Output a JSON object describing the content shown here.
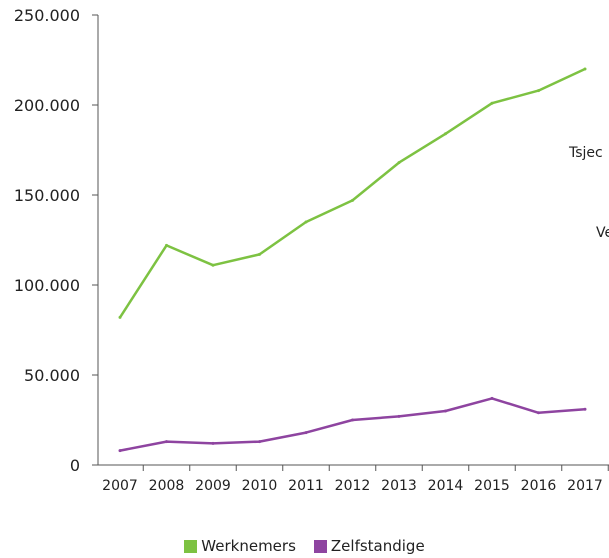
{
  "colors": {
    "werknemers": "#7dc242",
    "zelfstandige": "#8e44a0",
    "axis": "#555555"
  },
  "chart_data": {
    "type": "line",
    "x": [
      "2007",
      "2008",
      "2009",
      "2010",
      "2011",
      "2012",
      "2013",
      "2014",
      "2015",
      "2016",
      "2017"
    ],
    "ylim": [
      0,
      250000
    ],
    "yticks": [
      "0",
      "50.000",
      "100.000",
      "150.000",
      "200.000",
      "250.000"
    ],
    "yticks_values": [
      0,
      50000,
      100000,
      150000,
      200000,
      250000
    ],
    "series": [
      {
        "name": "Werknemers",
        "values": [
          82000,
          122000,
          111000,
          117000,
          135000,
          147000,
          168000,
          184000,
          201000,
          208000,
          220000
        ]
      },
      {
        "name": "Zelfstandige",
        "values": [
          8000,
          13000,
          12000,
          13000,
          18000,
          25000,
          27000,
          30000,
          37000,
          29000,
          31000
        ]
      }
    ],
    "annotations": [
      "Tsjec",
      "Ve"
    ]
  }
}
